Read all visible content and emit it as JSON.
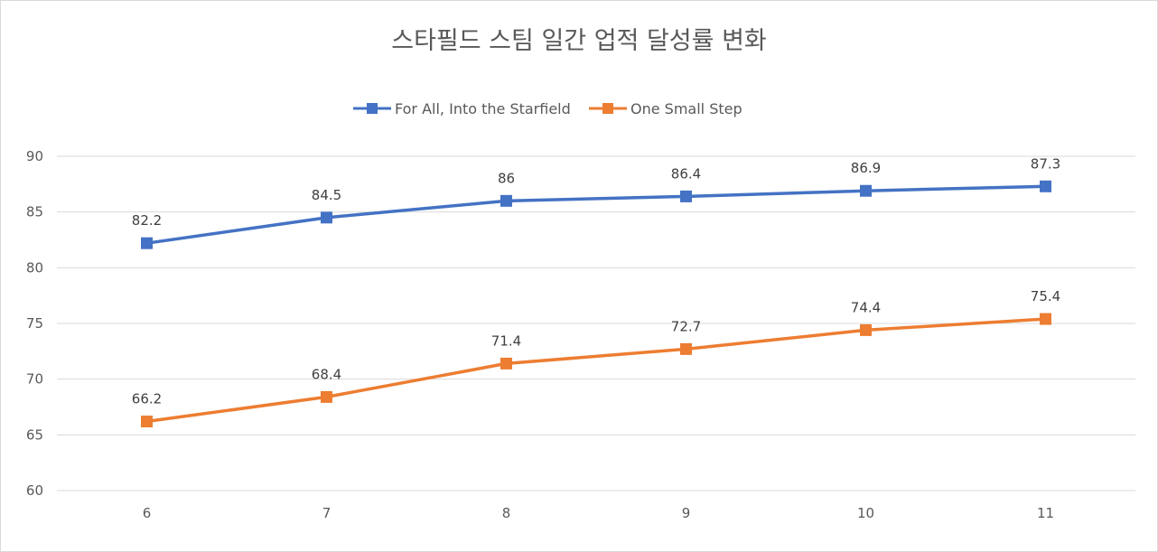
{
  "chart_data": {
    "type": "line",
    "title": "스타필드 스팀 일간 업적 달성률 변화",
    "xlabel": "",
    "ylabel": "",
    "categories": [
      "6",
      "7",
      "8",
      "9",
      "10",
      "11"
    ],
    "ylim": [
      60,
      90
    ],
    "yticks": [
      "60",
      "65",
      "70",
      "75",
      "80",
      "85",
      "90"
    ],
    "grid": true,
    "legend_position": "top",
    "series": [
      {
        "name": "For All, Into the Starfield",
        "color": "#4472c4",
        "values": [
          82.2,
          84.5,
          86,
          86.4,
          86.9,
          87.3
        ],
        "labels": [
          "82.2",
          "84.5",
          "86",
          "86.4",
          "86.9",
          "87.3"
        ]
      },
      {
        "name": "One Small Step",
        "color": "#ed7d31",
        "values": [
          66.2,
          68.4,
          71.4,
          72.7,
          74.4,
          75.4
        ],
        "labels": [
          "66.2",
          "68.4",
          "71.4",
          "72.7",
          "74.4",
          "75.4"
        ]
      }
    ]
  }
}
